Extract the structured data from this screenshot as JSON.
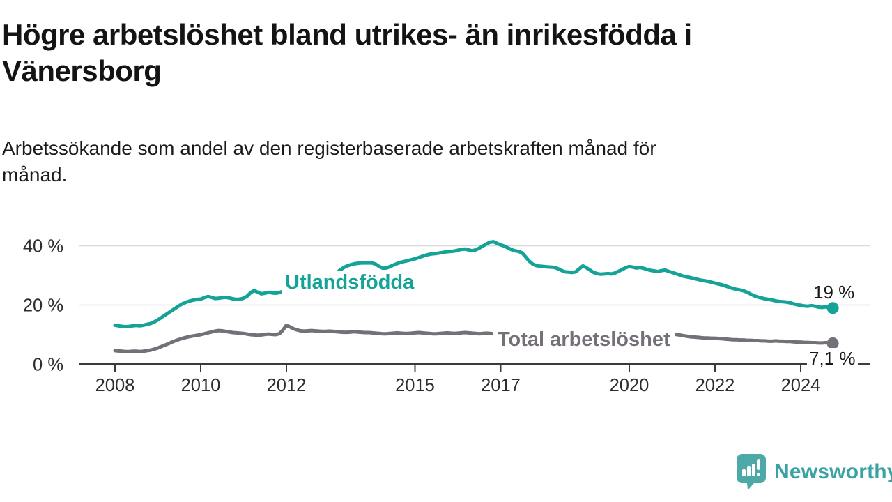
{
  "header": {
    "title_lines": [
      "Högre arbetslöshet bland utrikes- än inrikesfödda i",
      "Vänersborg"
    ],
    "subtitle_lines": [
      "Arbetssökande som andel av den registerbaserade arbetskraften månad för",
      "månad."
    ]
  },
  "chart_data": {
    "type": "line",
    "title": "Högre arbetslöshet bland utrikes- än inrikesfödda i Vänersborg",
    "xlabel": "",
    "ylabel": "Arbetssökande som andel av den registerbaserade arbetskraften",
    "x_unit": "month",
    "x_start_year": 2008,
    "x_end": "2024-10",
    "x_tick_years": [
      2008,
      2010,
      2012,
      2015,
      2017,
      2020,
      2022,
      2024
    ],
    "y_ticks": [
      {
        "value": 0,
        "label": "0 %"
      },
      {
        "value": 20,
        "label": "20 %"
      },
      {
        "value": 40,
        "label": "40 %"
      }
    ],
    "ylim": [
      0,
      45
    ],
    "grid": "horizontal",
    "legend_position": "inline-labels",
    "axis_color": "#3b3b3b",
    "grid_color": "#dadada",
    "tick_label_color": "#2d2d2d",
    "series": [
      {
        "name": "Utlandsfödda",
        "color": "#15a398",
        "end_label": "19 %",
        "end_value": 19.0,
        "values": [
          13.2,
          13.0,
          12.8,
          12.7,
          12.8,
          13.0,
          13.1,
          13.0,
          13.2,
          13.5,
          13.8,
          14.3,
          15.0,
          15.8,
          16.6,
          17.4,
          18.2,
          19.0,
          19.8,
          20.5,
          21.0,
          21.4,
          21.7,
          21.9,
          22.0,
          22.5,
          22.9,
          22.6,
          22.2,
          22.3,
          22.5,
          22.6,
          22.4,
          22.1,
          21.9,
          22.0,
          22.3,
          23.0,
          24.2,
          24.9,
          24.3,
          23.8,
          24.0,
          24.3,
          24.1,
          24.0,
          24.2,
          24.6,
          25.2,
          25.5,
          25.7,
          25.9,
          26.1,
          26.3,
          26.5,
          26.7,
          26.9,
          27.1,
          27.3,
          27.6,
          28.8,
          29.8,
          30.8,
          31.8,
          32.6,
          33.2,
          33.6,
          33.9,
          34.1,
          34.2,
          34.2,
          34.2,
          34.2,
          33.8,
          33.0,
          32.4,
          32.5,
          33.0,
          33.5,
          34.0,
          34.4,
          34.7,
          35.0,
          35.3,
          35.6,
          36.0,
          36.4,
          36.8,
          37.1,
          37.3,
          37.4,
          37.6,
          37.8,
          38.0,
          38.1,
          38.2,
          38.5,
          38.8,
          38.9,
          38.6,
          38.3,
          38.6,
          39.2,
          39.9,
          40.6,
          41.2,
          41.4,
          40.8,
          40.3,
          39.9,
          39.3,
          38.7,
          38.3,
          38.1,
          37.6,
          36.2,
          34.8,
          33.8,
          33.3,
          33.1,
          33.0,
          32.9,
          32.8,
          32.7,
          32.3,
          31.7,
          31.2,
          31.1,
          31.0,
          31.2,
          32.2,
          33.2,
          32.6,
          31.8,
          31.0,
          30.6,
          30.4,
          30.5,
          30.6,
          30.5,
          30.8,
          31.4,
          32.0,
          32.6,
          33.0,
          32.8,
          32.5,
          32.7,
          32.4,
          32.0,
          31.7,
          31.5,
          31.3,
          31.6,
          31.8,
          31.4,
          31.0,
          30.6,
          30.2,
          29.8,
          29.5,
          29.3,
          29.0,
          28.7,
          28.4,
          28.2,
          28.0,
          27.7,
          27.4,
          27.1,
          26.8,
          26.4,
          26.0,
          25.6,
          25.3,
          25.1,
          24.8,
          24.3,
          23.7,
          23.1,
          22.7,
          22.4,
          22.1,
          21.9,
          21.7,
          21.4,
          21.2,
          21.1,
          21.0,
          20.8,
          20.4,
          20.1,
          19.9,
          19.7,
          19.6,
          19.8,
          19.6,
          19.3,
          19.2,
          19.4,
          19.1,
          19.0
        ]
      },
      {
        "name": "Total arbetslöshet",
        "color": "#757078",
        "end_label": "7,1 %",
        "end_value": 7.1,
        "values": [
          4.6,
          4.5,
          4.4,
          4.3,
          4.3,
          4.4,
          4.4,
          4.3,
          4.4,
          4.6,
          4.8,
          5.1,
          5.5,
          6.0,
          6.5,
          7.0,
          7.5,
          8.0,
          8.4,
          8.8,
          9.1,
          9.4,
          9.6,
          9.8,
          10.0,
          10.3,
          10.6,
          10.9,
          11.2,
          11.4,
          11.3,
          11.1,
          10.9,
          10.7,
          10.6,
          10.5,
          10.4,
          10.2,
          10.0,
          9.9,
          9.8,
          9.9,
          10.1,
          10.2,
          10.1,
          10.0,
          10.3,
          11.5,
          13.2,
          12.6,
          12.0,
          11.6,
          11.3,
          11.2,
          11.3,
          11.4,
          11.3,
          11.2,
          11.1,
          11.1,
          11.2,
          11.1,
          11.0,
          10.9,
          10.8,
          10.8,
          10.9,
          11.0,
          10.9,
          10.8,
          10.7,
          10.7,
          10.6,
          10.5,
          10.4,
          10.3,
          10.3,
          10.4,
          10.5,
          10.6,
          10.5,
          10.4,
          10.4,
          10.5,
          10.6,
          10.7,
          10.6,
          10.5,
          10.4,
          10.3,
          10.3,
          10.4,
          10.5,
          10.6,
          10.5,
          10.4,
          10.5,
          10.6,
          10.7,
          10.6,
          10.5,
          10.4,
          10.3,
          10.4,
          10.5,
          10.4,
          10.3,
          10.2,
          10.3,
          10.4,
          10.3,
          10.2,
          10.1,
          10.0,
          9.9,
          9.8,
          9.7,
          9.6,
          9.6,
          9.7,
          9.6,
          9.5,
          9.4,
          9.3,
          9.2,
          9.1,
          9.0,
          8.9,
          8.9,
          9.0,
          9.1,
          9.2,
          9.1,
          9.0,
          8.9,
          8.8,
          8.8,
          8.9,
          9.0,
          9.1,
          9.2,
          9.3,
          9.4,
          9.6,
          9.8,
          10.0,
          10.4,
          10.9,
          11.2,
          11.3,
          11.2,
          11.0,
          10.8,
          10.6,
          10.4,
          10.3,
          10.2,
          10.1,
          9.9,
          9.7,
          9.5,
          9.3,
          9.2,
          9.1,
          9.0,
          8.9,
          8.9,
          8.8,
          8.8,
          8.7,
          8.6,
          8.5,
          8.4,
          8.3,
          8.3,
          8.2,
          8.2,
          8.1,
          8.1,
          8.0,
          8.0,
          7.9,
          7.9,
          7.8,
          7.8,
          7.9,
          7.8,
          7.8,
          7.7,
          7.7,
          7.6,
          7.5,
          7.5,
          7.4,
          7.4,
          7.3,
          7.3,
          7.2,
          7.2,
          7.3,
          7.2,
          7.1
        ]
      }
    ]
  },
  "footer": {
    "brand": "Newsworthy",
    "brand_color": "#4da8a8"
  }
}
